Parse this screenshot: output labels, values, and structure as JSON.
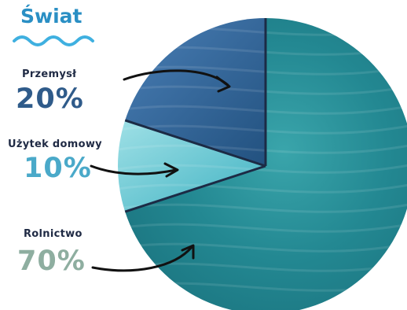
{
  "header": {
    "title": "Świat"
  },
  "chart_data": {
    "type": "pie",
    "title": "Świat",
    "slices": [
      {
        "label": "Przemysł",
        "value": 20,
        "value_label": "20%",
        "color": "#2f5f92",
        "label_color": "#2f5b8a"
      },
      {
        "label": "Użytek domowy",
        "value": 10,
        "value_label": "10%",
        "color": "#6cc9d4",
        "label_color": "#4aa9c9"
      },
      {
        "label": "Rolnictwo",
        "value": 70,
        "value_label": "70%",
        "color": "#2a939b",
        "label_color": "#8eaea0"
      }
    ]
  },
  "colors": {
    "title": "#2a8fc4",
    "squiggle": "#3fb0e0",
    "divider": "#1c2b45"
  }
}
